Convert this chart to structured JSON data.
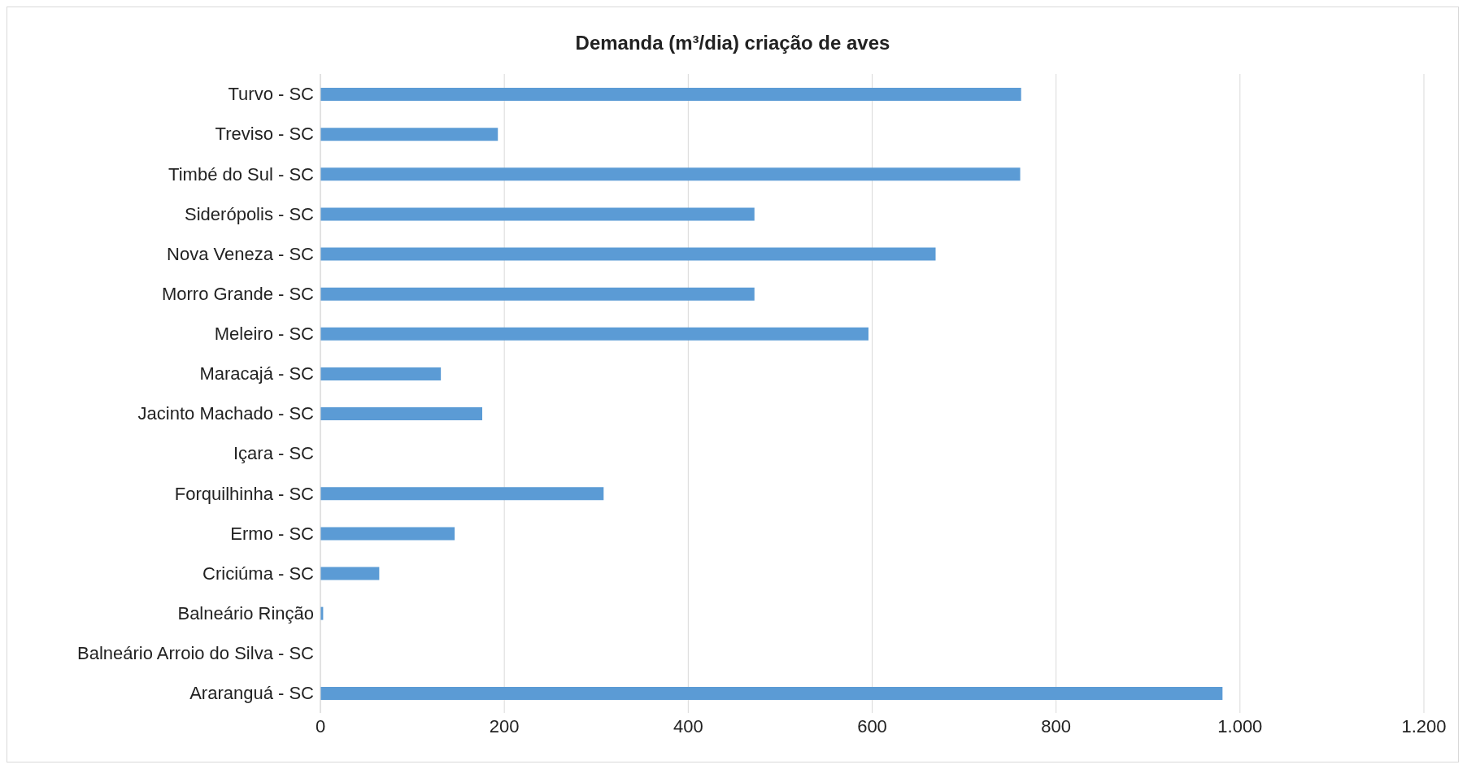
{
  "chart_data": {
    "type": "bar",
    "orientation": "horizontal",
    "title": "Demanda (m³/dia) criação de aves",
    "categories": [
      "Turvo - SC",
      "Treviso - SC",
      "Timbé do Sul - SC",
      "Siderópolis - SC",
      "Nova Veneza - SC",
      "Morro Grande - SC",
      "Meleiro - SC",
      "Maracajá - SC",
      "Jacinto Machado - SC",
      "Içara - SC",
      "Forquilhinha - SC",
      "Ermo - SC",
      "Criciúma - SC",
      "Balneário Rinção",
      "Balneário Arroio do Silva - SC",
      "Araranguá - SC"
    ],
    "values": [
      762,
      193,
      761,
      472,
      669,
      472,
      596,
      131,
      176,
      0,
      308,
      146,
      64,
      3,
      0,
      981
    ],
    "color": "#5b9bd5",
    "xlim": [
      0,
      1200
    ],
    "xticks": [
      0,
      200,
      400,
      600,
      800,
      {
        "value": 1000,
        "label": "1.000"
      },
      {
        "value": 1200,
        "label": "1.200"
      }
    ],
    "grid": "x",
    "legend": false
  }
}
